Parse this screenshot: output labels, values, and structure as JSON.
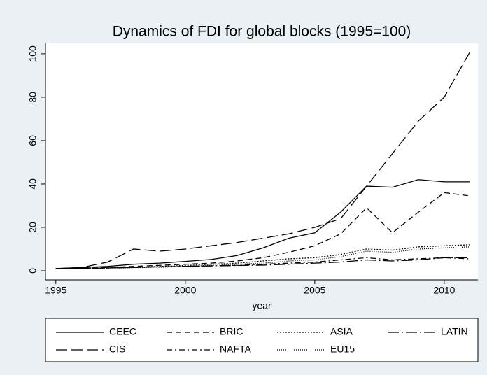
{
  "chart_data": {
    "type": "line",
    "title": "Dynamics of FDI for global blocks (1995=100)",
    "x_label": "year",
    "x": [
      1995,
      1996,
      1997,
      1998,
      1999,
      2000,
      2001,
      2002,
      2003,
      2004,
      2005,
      2006,
      2007,
      2008,
      2009,
      2010,
      2011
    ],
    "series": [
      {
        "name": "CEEC",
        "color": "#000000",
        "dash": "none",
        "values": [
          1,
          1.5,
          2,
          3,
          3.5,
          4.3,
          5.2,
          7,
          10.5,
          15,
          17.5,
          27,
          39,
          38.5,
          42,
          41,
          41
        ]
      },
      {
        "name": "BRIC",
        "color": "#000000",
        "dash": "8 5",
        "values": [
          1,
          1.2,
          1.5,
          2,
          2.5,
          3,
          3.5,
          4.5,
          6,
          8.5,
          11.5,
          17,
          29,
          17.5,
          27,
          36,
          34.5
        ]
      },
      {
        "name": "ASIA",
        "color": "#000000",
        "dash": "2 2",
        "values": [
          1,
          1.1,
          1.3,
          1.5,
          2,
          2.4,
          3,
          3.5,
          4.5,
          5.5,
          6,
          7.5,
          10,
          9.5,
          11,
          11.5,
          12
        ]
      },
      {
        "name": "LATIN",
        "color": "#000000",
        "dash": "16 4 2 4",
        "values": [
          1,
          1.1,
          1.3,
          1.5,
          1.8,
          2,
          2.2,
          2.4,
          2.6,
          3,
          3.5,
          4,
          5,
          4.5,
          5,
          6,
          6
        ]
      },
      {
        "name": "CIS",
        "color": "#000000",
        "dash": "16 6",
        "values": [
          1,
          1.5,
          4,
          10,
          9,
          10,
          11.5,
          13,
          15,
          17,
          20,
          24,
          39,
          54,
          69,
          80,
          101
        ]
      },
      {
        "name": "NAFTA",
        "color": "#000000",
        "dash": "8 4 2 4",
        "values": [
          1,
          1.1,
          1.3,
          1.5,
          1.8,
          2,
          2.3,
          2.5,
          3,
          3.5,
          4,
          5,
          6,
          5,
          5.5,
          6,
          5.5
        ]
      },
      {
        "name": "EU15",
        "color": "#000000",
        "dash": "1 2",
        "values": [
          1,
          1.1,
          1.2,
          1.4,
          1.6,
          2,
          2.5,
          3,
          3.5,
          4.5,
          5,
          6.5,
          9,
          8.5,
          10,
          10.5,
          11
        ]
      }
    ],
    "xlim": [
      1994.6,
      2011.3
    ],
    "xticks": [
      1995,
      2000,
      2005,
      2010
    ],
    "ylim": [
      -4.2,
      104.8
    ],
    "yticks": [
      0,
      20,
      40,
      60,
      80,
      100
    ]
  }
}
